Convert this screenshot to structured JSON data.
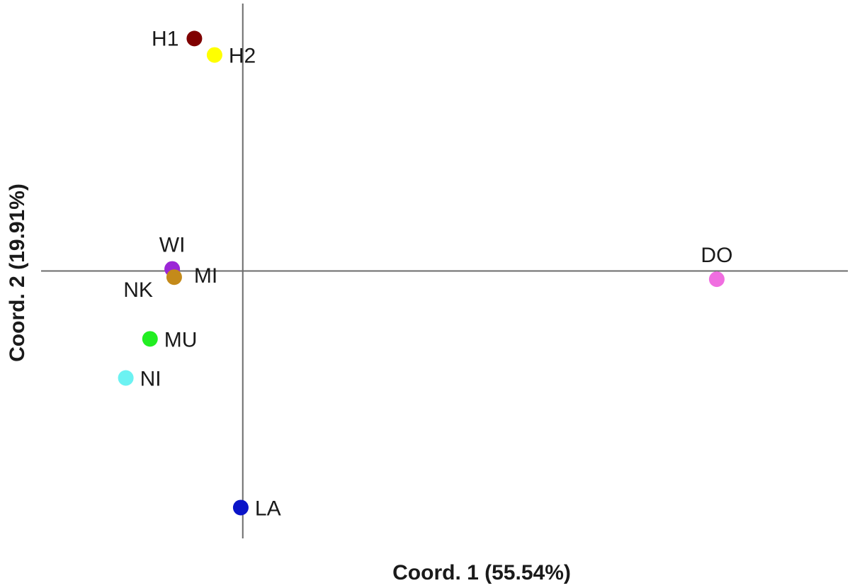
{
  "chart_data": {
    "type": "scatter",
    "title": "",
    "xlabel": "Coord. 1 (55.54%)",
    "ylabel": "Coord. 2 (19.91%)",
    "xlim": [
      -1.0,
      3.0
    ],
    "ylim": [
      -1.3,
      1.3
    ],
    "grid": false,
    "legend": "none",
    "axes_through_origin": true,
    "points": [
      {
        "label": "H1",
        "x": -0.24,
        "y": 1.13,
        "color": "#7f0000",
        "label_pos": "left"
      },
      {
        "label": "H2",
        "x": -0.14,
        "y": 1.05,
        "color": "#ffff00",
        "label_pos": "right"
      },
      {
        "label": "WI",
        "x": -0.35,
        "y": 0.01,
        "color": "#9b26d6",
        "label_pos": "above"
      },
      {
        "label": "NK",
        "x": -0.34,
        "y": -0.03,
        "color": "#c48a1a",
        "label_pos": "below-left"
      },
      {
        "label": "MI",
        "x": -0.34,
        "y": -0.03,
        "color": "#c48a1a",
        "label_pos": "right",
        "marker": false
      },
      {
        "label": "MU",
        "x": -0.46,
        "y": -0.33,
        "color": "#22ee22",
        "label_pos": "right"
      },
      {
        "label": "NI",
        "x": -0.58,
        "y": -0.52,
        "color": "#6cf2f2",
        "label_pos": "right"
      },
      {
        "label": "LA",
        "x": -0.01,
        "y": -1.15,
        "color": "#0a14c8",
        "label_pos": "right"
      },
      {
        "label": "DO",
        "x": 2.35,
        "y": -0.04,
        "color": "#f06ee0",
        "label_pos": "above"
      }
    ]
  }
}
